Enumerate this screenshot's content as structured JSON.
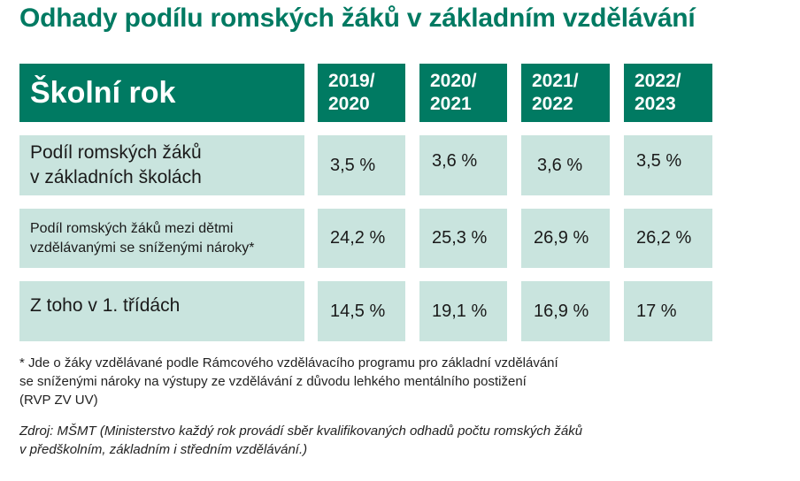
{
  "title": "Odhady podílu romských žáků v základním vzdělávání",
  "chart_data": {
    "type": "table",
    "title": "Odhady podílu romských žáků v základním vzdělávání",
    "header_label": "Školní rok",
    "columns": [
      "2019/\n2020",
      "2020/\n2021",
      "2021/\n2022",
      "2022/\n2023"
    ],
    "rows": [
      {
        "label": "Podíl romských žáků\nv základních školách",
        "display": [
          "3,5 %",
          "3,6 %",
          "3,6 %",
          "3,5 %"
        ],
        "values": [
          3.5,
          3.6,
          3.6,
          3.5
        ]
      },
      {
        "label": "Podíl romských žáků mezi dětmi\nvzdělávanými se sníženými nároky*",
        "display": [
          "24,2 %",
          "25,3 %",
          "26,9 %",
          "26,2 %"
        ],
        "values": [
          24.2,
          25.3,
          26.9,
          26.2
        ]
      },
      {
        "label": "Z toho v 1. třídách",
        "display": [
          "14,5 %",
          "19,1 %",
          "16,9 %",
          "17 %"
        ],
        "values": [
          14.5,
          19.1,
          16.9,
          17
        ]
      }
    ],
    "unit": "%"
  },
  "footnote": "* Jde o žáky vzdělávané podle Rámcového vzdělávacího programu pro základní vzdělávání\nse sníženými nároky na výstupy ze vzdělávání z důvodu lehkého mentálního postižení\n(RVP ZV UV)",
  "source": "Zdroj: MŠMT (Ministerstvo každý rok provádí sběr kvalifikovaných odhadů počtu romských žáků\nv předškolním, základním i středním vzdělávání.)",
  "colors": {
    "header_bg": "#007a62",
    "cell_bg": "#c9e4de",
    "title": "#007a62"
  }
}
